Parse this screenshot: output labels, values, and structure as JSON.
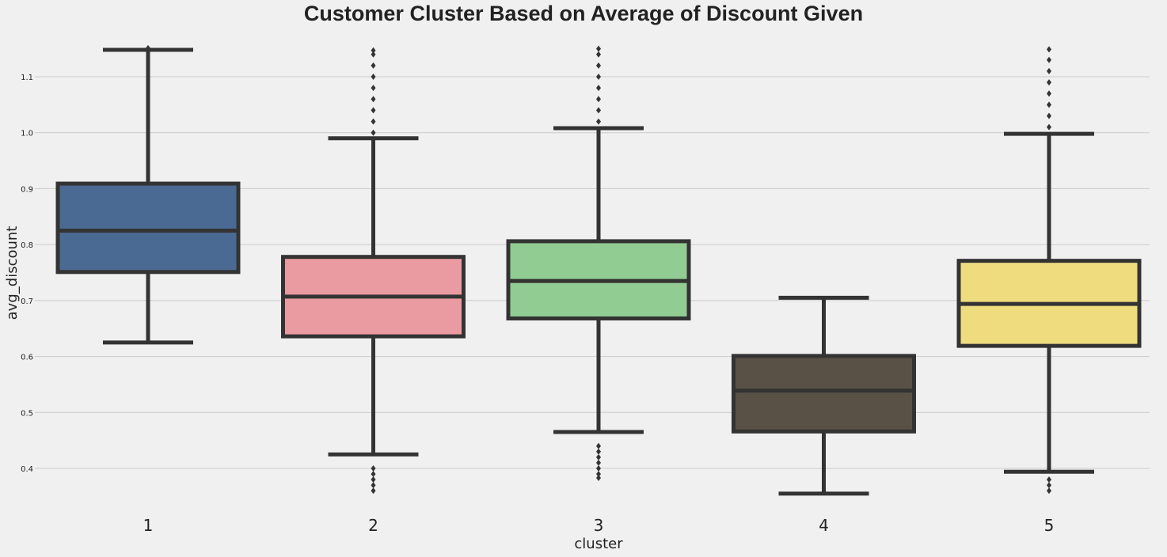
{
  "chart_data": {
    "type": "box",
    "title": "Customer Cluster Based on Average of Discount Given",
    "xlabel": "cluster",
    "ylabel": "avg_discount",
    "ylim": [
      0.33,
      1.17
    ],
    "yticks": [
      "0.4",
      "0.5",
      "0.6",
      "0.7",
      "0.8",
      "0.9",
      "1.0",
      "1.1"
    ],
    "grid": "horizontal",
    "categories": [
      "1",
      "2",
      "3",
      "4",
      "5"
    ],
    "boxes": [
      {
        "category": "1",
        "color": "#4a6a93",
        "whisker_low": 0.625,
        "q1": 0.751,
        "median": 0.825,
        "q3": 0.909,
        "whisker_high": 1.148,
        "outliers": [
          1.151
        ]
      },
      {
        "category": "2",
        "color": "#ea9ba1",
        "whisker_low": 0.425,
        "q1": 0.636,
        "median": 0.707,
        "q3": 0.778,
        "whisker_high": 0.99,
        "outliers": [
          0.36,
          0.37,
          0.38,
          0.39,
          0.4,
          1.0,
          1.02,
          1.04,
          1.06,
          1.08,
          1.1,
          1.12,
          1.14,
          1.147
        ]
      },
      {
        "category": "3",
        "color": "#91cc92",
        "whisker_low": 0.465,
        "q1": 0.668,
        "median": 0.735,
        "q3": 0.806,
        "whisker_high": 1.008,
        "outliers": [
          0.383,
          0.39,
          0.4,
          0.41,
          0.42,
          0.43,
          0.44,
          1.02,
          1.04,
          1.06,
          1.08,
          1.1,
          1.12,
          1.14,
          1.15
        ]
      },
      {
        "category": "4",
        "color": "#5a5146",
        "whisker_low": 0.355,
        "q1": 0.466,
        "median": 0.539,
        "q3": 0.601,
        "whisker_high": 0.705,
        "outliers": []
      },
      {
        "category": "5",
        "color": "#eedc7f",
        "whisker_low": 0.394,
        "q1": 0.619,
        "median": 0.694,
        "q3": 0.771,
        "whisker_high": 0.998,
        "outliers": [
          0.36,
          0.37,
          0.38,
          1.01,
          1.03,
          1.05,
          1.07,
          1.09,
          1.11,
          1.13,
          1.149
        ]
      }
    ]
  }
}
